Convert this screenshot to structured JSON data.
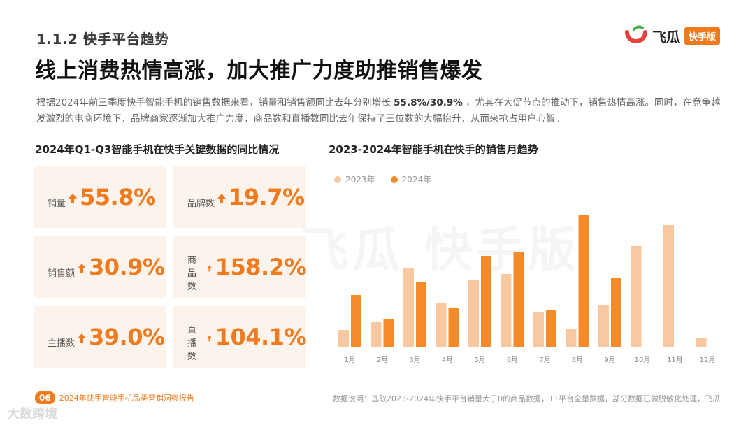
{
  "header": {
    "section": "1.1.2 快手平台趋势",
    "headline": "线上消费热情高涨，加大推广力度助推销售爆发",
    "brand_name": "飞瓜",
    "brand_tag": "快手版"
  },
  "intro": {
    "part1": "根据2024年前三季度快手智能手机的销售数据来看，销量和销售额同比去年分别增长 ",
    "highlight": "55.8%/30.9%",
    "part2": " ，尤其在大促节点的推动下，销售热情高涨。同时，在竞争越发激烈的电商环境下，品牌商家逐渐加大推广力度，商品数和直播数同比去年保持了三位数的大幅抬升，从而来抢占用户心智。"
  },
  "left_panel": {
    "title": "2024年Q1-Q3智能手机在快手关键数据的同比情况",
    "metrics": [
      {
        "label": "销量",
        "value": "55.8%"
      },
      {
        "label": "品牌数",
        "value": "19.7%"
      },
      {
        "label": "销售额",
        "value": "30.9%"
      },
      {
        "label": "商品数",
        "value": "158.2%"
      },
      {
        "label": "主播数",
        "value": "39.0%"
      },
      {
        "label": "直播数",
        "value": "104.1%"
      }
    ]
  },
  "watermark": "飞瓜 快手版",
  "chart_data": {
    "type": "bar",
    "title": "2023-2024年智能手机在快手的销售月趋势",
    "categories": [
      "1月",
      "2月",
      "3月",
      "4月",
      "5月",
      "6月",
      "7月",
      "8月",
      "9月",
      "10月",
      "11月",
      "12月"
    ],
    "series": [
      {
        "name": "2023年",
        "color": "#f8c9a0",
        "values": [
          12,
          18,
          56,
          31,
          48,
          52,
          25,
          13,
          30,
          72,
          87,
          6
        ]
      },
      {
        "name": "2024年",
        "color": "#f58a2b",
        "values": [
          37,
          20,
          46,
          28,
          65,
          68,
          26,
          94,
          49,
          null,
          null,
          null
        ]
      }
    ],
    "ylim": [
      0,
      100
    ],
    "grid": false,
    "legend": "top-left"
  },
  "footer": {
    "page": "06",
    "report_title": "2024年快手智能手机品类营销洞察报告",
    "note": "数据说明：选取2023-2024年快手平台销量大于0的商品数据，11平台全量数据，部分数据已做脱敏化处理，飞瓜",
    "corner_watermark": "大数跨境"
  }
}
